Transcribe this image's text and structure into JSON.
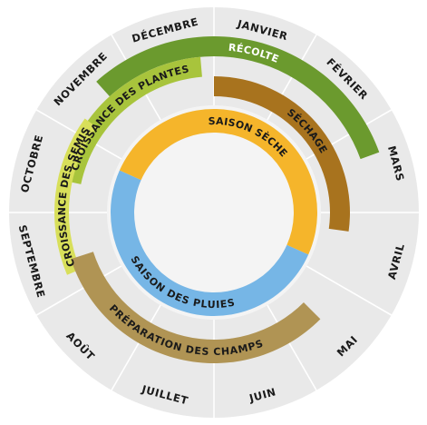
{
  "months": [
    {
      "label": "JANVIER",
      "angle": 15
    },
    {
      "label": "FÉVRIER",
      "angle": 45
    },
    {
      "label": "MARS",
      "angle": 75
    },
    {
      "label": "AVRIL",
      "angle": 105
    },
    {
      "label": "MAI",
      "angle": 135
    },
    {
      "label": "JUIN",
      "angle": 165
    },
    {
      "label": "JUILLET",
      "angle": 195
    },
    {
      "label": "AOÛT",
      "angle": 225
    },
    {
      "label": "SEPTEMBRE",
      "angle": 255
    },
    {
      "label": "OCTOBRE",
      "angle": 285
    },
    {
      "label": "NOVEMBRE",
      "angle": 315
    },
    {
      "label": "DÉCEMBRE",
      "angle": 345
    }
  ],
  "activities": [
    {
      "id": "recolte",
      "label": "RÉCOLTE",
      "start": 318,
      "end": 70,
      "color": "#6b9a2e",
      "text_color": "#ffffff"
    },
    {
      "id": "croissance-plantes",
      "label": "CROISSANCE DES PLANTES",
      "start": 282,
      "end": 355,
      "color": "#a8c43c",
      "text_color": "#1a1a1a"
    },
    {
      "id": "croissance-semis",
      "label": "CROISSANCE DES SEMIS",
      "start": 247,
      "end": 306,
      "color": "#d8df5a",
      "text_color": "#1a1a1a"
    },
    {
      "id": "sechage",
      "label": "SÉCHAGE",
      "start": 0,
      "end": 98,
      "color": "#a8731e",
      "text_color": "#1a1a1a"
    },
    {
      "id": "preparation-champs",
      "label": "PRÉPARATION DES CHAMPS",
      "start": 135,
      "end": 252,
      "color": "#b09454",
      "text_color": "#1a1a1a"
    }
  ],
  "seasons": [
    {
      "id": "saison-seche",
      "label": "SAISON SÈCHE",
      "start": 294,
      "end": 114,
      "color": "#f5b52b",
      "text_color": "#1a1a1a"
    },
    {
      "id": "saison-pluies",
      "label": "SAISON DES PLUIES",
      "start": 114,
      "end": 294,
      "color": "#76b6e6",
      "text_color": "#1a1a1a"
    }
  ],
  "colors": {
    "outer_disc": "#e9e9e9",
    "inner_disc": "#f4f4f4",
    "divider": "#ffffff"
  }
}
